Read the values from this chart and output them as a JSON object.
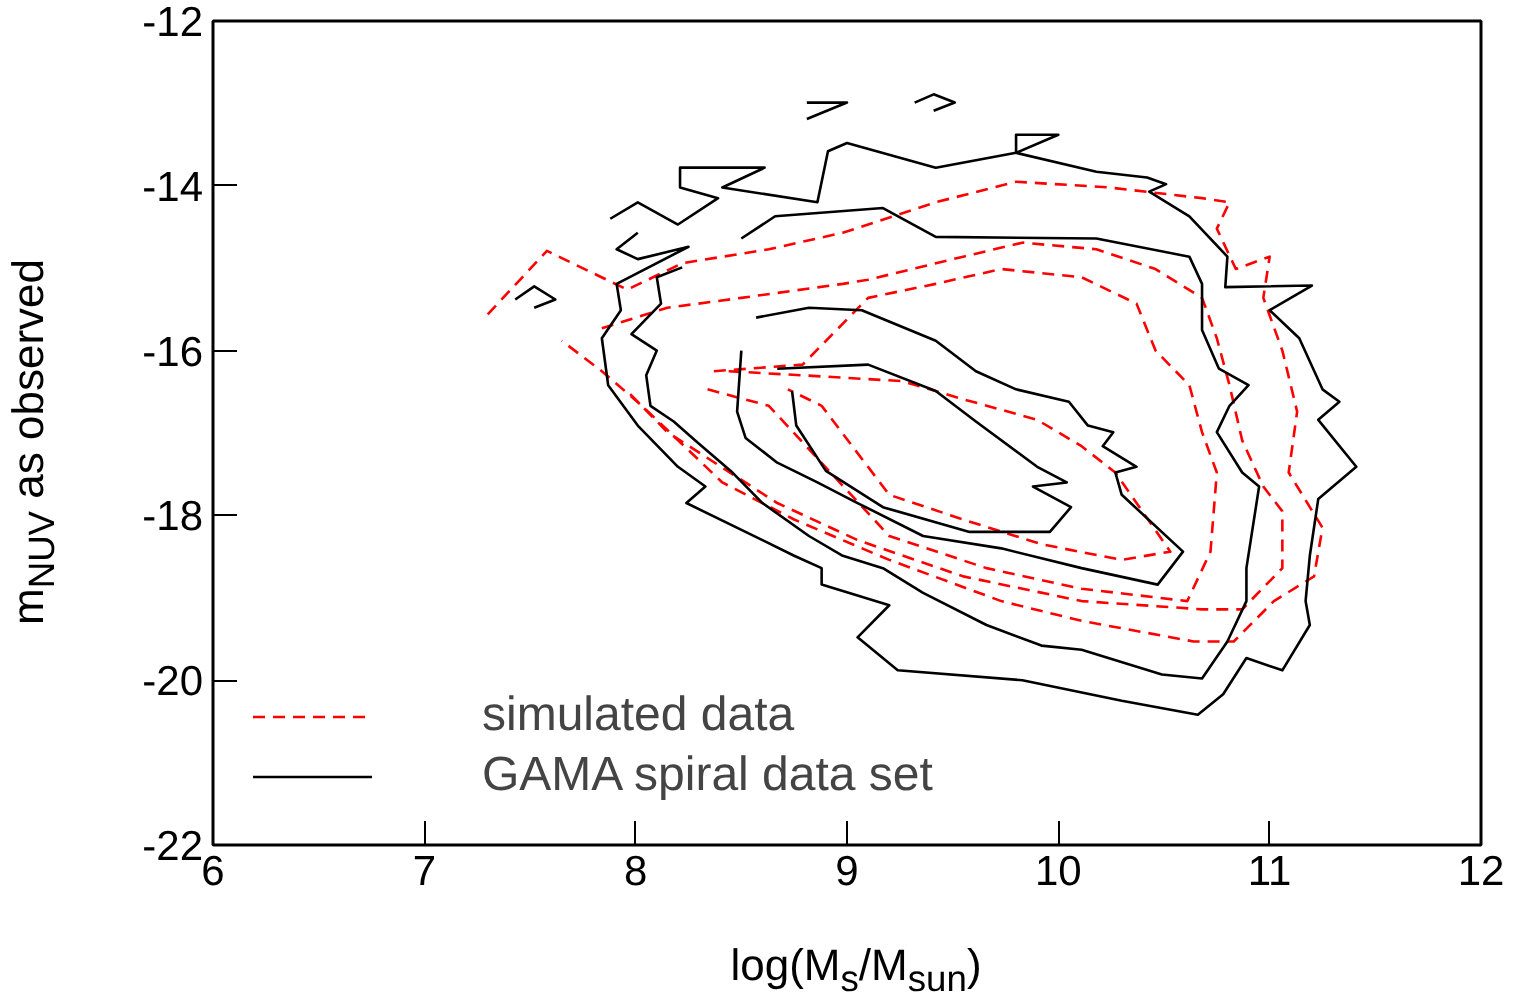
{
  "chart_data": {
    "type": "line",
    "xlabel": "log(M$_{s}$/M$_{sun}$)",
    "ylabel": "m$_{NUV}$ as observed",
    "xlim": [
      6,
      12
    ],
    "xticks": [
      6,
      7,
      8,
      9,
      10,
      11,
      12
    ],
    "ylim": [
      -22,
      -12
    ],
    "yticks": [
      -22,
      -20,
      -18,
      -16,
      -14,
      -12
    ],
    "grid": false,
    "legend": "bottom left",
    "marker": "none",
    "series": [
      {
        "name": "simulated data",
        "color": "#ff0000",
        "line_style": "dashed",
        "x": [
          7.3,
          7.58,
          7.96,
          8.22,
          8.63,
          8.98,
          9.42,
          9.8,
          10.24,
          10.68,
          10.81,
          10.75,
          10.84,
          11.0,
          10.97,
          11.06,
          11.13,
          11.09,
          11.25,
          11.21,
          11.02,
          10.83,
          10.64,
          10.11,
          9.73,
          9.2,
          8.75,
          8.41,
          8.03,
          7.84,
          7.65
        ],
        "values": [
          -15.56,
          -14.79,
          -15.26,
          -14.94,
          -14.77,
          -14.57,
          -14.2,
          -13.95,
          -14.02,
          -14.15,
          -14.2,
          -14.52,
          -15.01,
          -14.86,
          -15.36,
          -16.0,
          -16.74,
          -17.48,
          -18.15,
          -18.74,
          -19.04,
          -19.53,
          -19.53,
          -19.28,
          -19.04,
          -18.54,
          -18.05,
          -17.6,
          -16.67,
          -16.25,
          -15.88
        ]
      },
      {
        "color": "#ff0000",
        "line_style": "dashed",
        "x": [
          7.84,
          8.15,
          8.5,
          8.98,
          9.1,
          9.55,
          9.83,
          10.18,
          10.46,
          10.68,
          10.75,
          10.81,
          10.87,
          10.97,
          11.06,
          11.06,
          10.87,
          10.68,
          10.11,
          9.55,
          9.05,
          8.67,
          8.15,
          7.96
        ],
        "values": [
          -15.73,
          -15.48,
          -15.36,
          -15.19,
          -15.14,
          -14.86,
          -14.69,
          -14.77,
          -15.01,
          -15.36,
          -15.85,
          -16.42,
          -17.09,
          -17.65,
          -17.95,
          -18.64,
          -19.14,
          -19.14,
          -19.04,
          -18.74,
          -18.3,
          -17.85,
          -16.99,
          -16.49
        ]
      },
      {
        "color": "#ff0000",
        "line_style": "dashed",
        "x": [
          8.37,
          8.79,
          9.1,
          9.42,
          9.73,
          10.11,
          10.37,
          10.46,
          10.62,
          10.68,
          10.75,
          10.72,
          10.61,
          10.11,
          9.66,
          9.2,
          8.63,
          8.34
        ],
        "values": [
          -16.25,
          -16.17,
          -15.36,
          -15.19,
          -15.01,
          -15.11,
          -15.43,
          -16.0,
          -16.42,
          -16.99,
          -17.48,
          -18.44,
          -19.04,
          -18.89,
          -18.64,
          -18.25,
          -16.67,
          -16.47
        ]
      },
      {
        "color": "#ff0000",
        "line_style": "dashed",
        "x": [
          8.44,
          8.79,
          9.26,
          9.55,
          9.9,
          10.11,
          10.27,
          10.53,
          10.3,
          9.92,
          9.55,
          9.2,
          8.88,
          8.72
        ],
        "values": [
          -16.25,
          -16.3,
          -16.37,
          -16.59,
          -16.84,
          -17.16,
          -17.48,
          -18.44,
          -18.54,
          -18.35,
          -18.05,
          -17.75,
          -16.67,
          -16.47
        ]
      },
      {
        "name": "GAMA spiral data set",
        "color": "#000000",
        "line_style": "solid",
        "x": [
          7.88,
          8.01,
          8.2,
          8.39,
          8.21,
          8.21,
          8.61,
          8.41,
          8.86,
          8.91,
          9.0,
          9.42,
          9.8,
          9.8,
          10.0,
          9.8,
          10.18,
          10.42,
          10.51,
          10.43,
          10.62,
          10.8,
          10.79,
          11.2,
          11.0,
          11.14,
          11.25,
          11.33,
          11.23,
          11.41,
          11.23,
          11.19,
          11.17,
          11.19,
          11.06,
          10.89,
          10.78,
          10.66,
          10.3,
          9.83,
          9.24,
          9.05,
          9.2,
          8.88,
          8.88,
          8.75,
          8.6,
          8.24,
          8.33,
          8.2,
          8.01,
          7.87,
          7.84,
          7.93,
          7.91,
          8.25,
          8.01,
          7.91,
          8.01
        ],
        "values": [
          -14.4,
          -14.2,
          -14.47,
          -14.15,
          -14.02,
          -13.78,
          -13.78,
          -14.02,
          -14.2,
          -13.58,
          -13.48,
          -13.78,
          -13.6,
          -13.38,
          -13.38,
          -13.6,
          -13.83,
          -13.9,
          -13.98,
          -14.07,
          -14.37,
          -14.86,
          -15.23,
          -15.21,
          -15.51,
          -15.85,
          -16.47,
          -16.62,
          -16.84,
          -17.41,
          -17.8,
          -18.49,
          -19.04,
          -19.33,
          -19.88,
          -19.73,
          -20.17,
          -20.42,
          -20.25,
          -20.0,
          -19.88,
          -19.48,
          -19.09,
          -18.84,
          -18.64,
          -18.49,
          -18.3,
          -17.85,
          -17.65,
          -17.41,
          -16.91,
          -16.42,
          -15.85,
          -15.51,
          -15.19,
          -14.74,
          -14.89,
          -14.77,
          -14.57
        ]
      },
      {
        "color": "#000000",
        "line_style": "solid",
        "x": [
          8.5,
          8.66,
          9.17,
          9.42,
          10.18,
          10.62,
          10.68,
          10.68,
          10.76,
          10.9,
          10.81,
          10.75,
          10.87,
          10.95,
          10.89,
          10.89,
          10.8,
          10.68,
          10.49,
          10.11,
          9.92,
          9.66,
          9.36,
          9.17,
          8.98,
          8.82,
          8.6,
          8.45,
          8.29,
          8.18,
          8.07,
          8.05,
          8.1,
          7.98,
          8.12,
          8.1,
          8.22
        ],
        "values": [
          -14.64,
          -14.37,
          -14.27,
          -14.62,
          -14.64,
          -14.86,
          -15.19,
          -15.75,
          -16.22,
          -16.42,
          -16.67,
          -16.99,
          -17.48,
          -17.65,
          -18.64,
          -19.04,
          -19.53,
          -19.98,
          -19.93,
          -19.63,
          -19.58,
          -19.33,
          -18.94,
          -18.64,
          -18.49,
          -18.25,
          -17.85,
          -17.46,
          -17.11,
          -16.86,
          -16.67,
          -16.3,
          -16.0,
          -15.8,
          -15.43,
          -15.11,
          -14.99
        ]
      },
      {
        "color": "#000000",
        "line_style": "solid",
        "x": [
          8.57,
          8.82,
          9.07,
          9.42,
          9.61,
          9.8,
          10.05,
          10.14,
          10.26,
          10.21,
          10.37,
          10.27,
          10.3,
          10.59,
          10.47,
          10.11,
          9.73,
          9.36,
          9.05,
          8.86,
          8.67,
          8.52,
          8.48,
          8.5
        ],
        "values": [
          -15.6,
          -15.48,
          -15.51,
          -15.88,
          -16.25,
          -16.47,
          -16.62,
          -16.91,
          -16.99,
          -17.16,
          -17.41,
          -17.48,
          -17.75,
          -18.44,
          -18.84,
          -18.64,
          -18.4,
          -18.25,
          -17.85,
          -17.6,
          -17.36,
          -17.06,
          -16.74,
          -16.0
        ]
      },
      {
        "color": "#000000",
        "line_style": "solid",
        "x": [
          8.67,
          9.1,
          9.42,
          9.61,
          9.9,
          10.04,
          9.88,
          10.06,
          9.96,
          9.58,
          9.17,
          8.9,
          8.76,
          8.74
        ],
        "values": [
          -16.22,
          -16.17,
          -16.49,
          -16.86,
          -17.41,
          -17.6,
          -17.65,
          -17.9,
          -18.2,
          -18.2,
          -17.9,
          -17.46,
          -16.91,
          -16.49
        ]
      },
      {
        "color": "#000000",
        "line_style": "solid",
        "x": [
          7.43,
          7.52,
          7.62,
          7.52
        ],
        "values": [
          -15.38,
          -15.22,
          -15.38,
          -15.48
        ]
      },
      {
        "color": "#000000",
        "line_style": "solid",
        "x": [
          8.81,
          9.0,
          8.81
        ],
        "values": [
          -12.99,
          -12.99,
          -13.19
        ]
      },
      {
        "color": "#000000",
        "line_style": "solid",
        "x": [
          9.32,
          9.41,
          9.51,
          9.41
        ],
        "values": [
          -12.99,
          -12.89,
          -12.99,
          -13.09
        ]
      }
    ]
  }
}
